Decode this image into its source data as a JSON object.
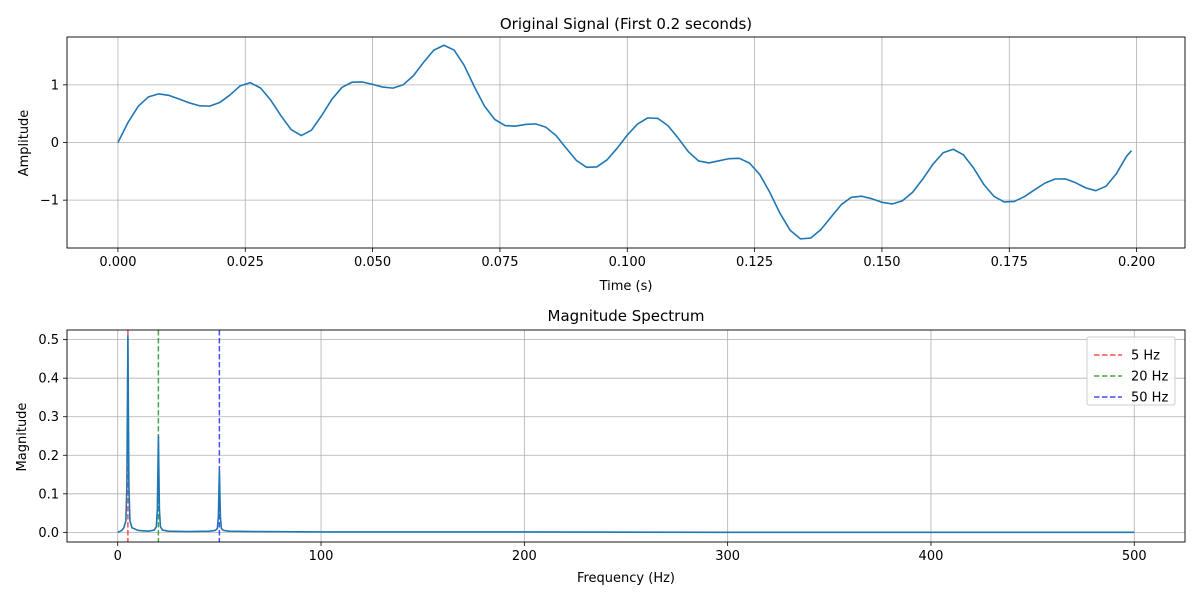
{
  "chart_data": [
    {
      "type": "line",
      "title": "Original Signal (First 0.2 seconds)",
      "xlabel": "Time (s)",
      "ylabel": "Amplitude",
      "xlim": [
        -0.01,
        0.2095
      ],
      "ylim": [
        -1.83,
        1.83
      ],
      "x_ticks": [
        0.0,
        0.025,
        0.05,
        0.075,
        0.1,
        0.125,
        0.15,
        0.175,
        0.2
      ],
      "x_tick_labels": [
        "0.000",
        "0.025",
        "0.050",
        "0.075",
        "0.100",
        "0.125",
        "0.150",
        "0.175",
        "0.200"
      ],
      "y_ticks": [
        -1,
        0,
        1
      ],
      "y_tick_labels": [
        "−1",
        "0",
        "1"
      ],
      "grid": true,
      "line_color": "#1f77b4",
      "series": [
        {
          "x": [
            0.0,
            0.002,
            0.004,
            0.006,
            0.008,
            0.01,
            0.012,
            0.014,
            0.016,
            0.018,
            0.02,
            0.022,
            0.024,
            0.026,
            0.028,
            0.03,
            0.032,
            0.034,
            0.036,
            0.038,
            0.04,
            0.042,
            0.044,
            0.046,
            0.048,
            0.05,
            0.052,
            0.054,
            0.056,
            0.058,
            0.06,
            0.062,
            0.064,
            0.066,
            0.068,
            0.07,
            0.072,
            0.074,
            0.076,
            0.078,
            0.08,
            0.082,
            0.084,
            0.086,
            0.088,
            0.09,
            0.092,
            0.094,
            0.096,
            0.098,
            0.1,
            0.102,
            0.104,
            0.106,
            0.108,
            0.11,
            0.112,
            0.114,
            0.116,
            0.118,
            0.12,
            0.122,
            0.124,
            0.126,
            0.128,
            0.13,
            0.132,
            0.134,
            0.136,
            0.138,
            0.14,
            0.142,
            0.144,
            0.146,
            0.148,
            0.15,
            0.152,
            0.154,
            0.156,
            0.158,
            0.16,
            0.162,
            0.164,
            0.166,
            0.168,
            0.17,
            0.172,
            0.174,
            0.176,
            0.178,
            0.18,
            0.182,
            0.184,
            0.186,
            0.188,
            0.19,
            0.192,
            0.194,
            0.196,
            0.198,
            0.199
          ],
          "values": [
            0.0,
            0.351,
            0.63,
            0.792,
            0.843,
            0.818,
            0.755,
            0.687,
            0.637,
            0.631,
            0.693,
            0.825,
            0.983,
            1.038,
            0.945,
            0.735,
            0.465,
            0.225,
            0.12,
            0.214,
            0.466,
            0.749,
            0.957,
            1.047,
            1.05,
            1.008,
            0.961,
            0.943,
            1.001,
            1.158,
            1.389,
            1.6,
            1.687,
            1.603,
            1.335,
            0.963,
            0.626,
            0.399,
            0.294,
            0.283,
            0.314,
            0.323,
            0.266,
            0.122,
            -0.097,
            -0.31,
            -0.43,
            -0.424,
            -0.303,
            -0.101,
            0.128,
            0.319,
            0.427,
            0.418,
            0.291,
            0.075,
            -0.161,
            -0.32,
            -0.355,
            -0.318,
            -0.28,
            -0.274,
            -0.358,
            -0.554,
            -0.868,
            -1.231,
            -1.525,
            -1.672,
            -1.658,
            -1.512,
            -1.294,
            -1.079,
            -0.95,
            -0.932,
            -0.975,
            -1.037,
            -1.066,
            -1.012,
            -0.865,
            -0.636,
            -0.378,
            -0.178,
            -0.117,
            -0.214,
            -0.444,
            -0.728,
            -0.935,
            -1.031,
            -1.022,
            -0.938,
            -0.819,
            -0.705,
            -0.633,
            -0.631,
            -0.697,
            -0.787,
            -0.836,
            -0.758,
            -0.545,
            -0.242,
            -0.141
          ]
        }
      ]
    },
    {
      "type": "line",
      "title": "Magnitude Spectrum",
      "xlabel": "Frequency (Hz)",
      "ylabel": "Magnitude",
      "xlim": [
        -24.95,
        524.95
      ],
      "ylim": [
        -0.025,
        0.525
      ],
      "x_ticks": [
        0,
        100,
        200,
        300,
        400,
        500
      ],
      "x_tick_labels": [
        "0",
        "100",
        "200",
        "300",
        "400",
        "500"
      ],
      "y_ticks": [
        0.0,
        0.1,
        0.2,
        0.3,
        0.4,
        0.5
      ],
      "y_tick_labels": [
        "0.0",
        "0.1",
        "0.2",
        "0.3",
        "0.4",
        "0.5"
      ],
      "grid": true,
      "line_color": "#1f77b4",
      "series": [
        {
          "x": [
            0,
            2,
            3,
            4,
            4.5,
            5,
            5.5,
            6,
            7,
            10,
            15,
            18,
            19,
            19.5,
            20,
            20.5,
            21,
            22,
            25,
            35,
            45,
            48,
            49,
            49.5,
            50,
            50.5,
            51,
            52,
            55,
            70,
            100,
            150,
            200,
            300,
            400,
            500
          ],
          "values": [
            0.0,
            0.005,
            0.012,
            0.03,
            0.12,
            0.51,
            0.12,
            0.03,
            0.012,
            0.005,
            0.003,
            0.006,
            0.015,
            0.06,
            0.25,
            0.06,
            0.015,
            0.006,
            0.003,
            0.002,
            0.003,
            0.005,
            0.01,
            0.04,
            0.16,
            0.04,
            0.01,
            0.005,
            0.003,
            0.002,
            0.001,
            0.001,
            0.001,
            0.0,
            0.0,
            0.0
          ]
        }
      ],
      "markers": [
        {
          "x": 5,
          "label": "5 Hz",
          "color": "#ff0000"
        },
        {
          "x": 20,
          "label": "20 Hz",
          "color": "#008000"
        },
        {
          "x": 50,
          "label": "50 Hz",
          "color": "#0000ff"
        }
      ],
      "legend_position": "top-right"
    }
  ]
}
